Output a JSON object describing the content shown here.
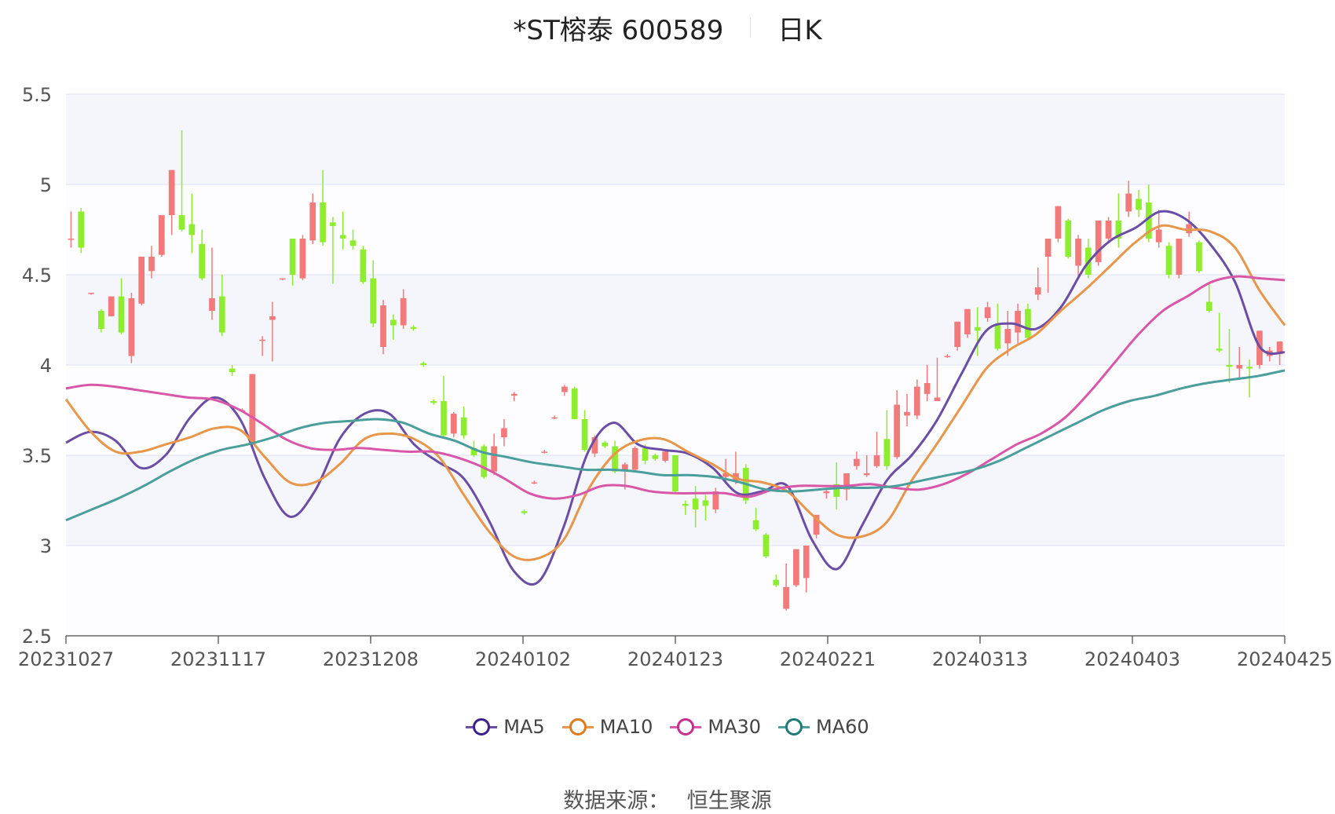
{
  "title": {
    "name": "*ST榕泰 600589",
    "period": "日K"
  },
  "source": {
    "label": "数据来源：",
    "value": "恒生聚源"
  },
  "legend": [
    {
      "name": "MA5",
      "color": "#6a4ea6",
      "ring": "#3b1f8c"
    },
    {
      "name": "MA10",
      "color": "#e8964a",
      "ring": "#e07a1c"
    },
    {
      "name": "MA30",
      "color": "#d957a8",
      "ring": "#c62f8e"
    },
    {
      "name": "MA60",
      "color": "#4a9e9b",
      "ring": "#217a78"
    }
  ],
  "chart_data": {
    "type": "candlestick",
    "ylim": [
      2.5,
      5.5
    ],
    "yticks": [
      "2.5",
      "3",
      "3.5",
      "4",
      "4.5",
      "5",
      "5.5"
    ],
    "xtick_labels": [
      "20231027",
      "20231117",
      "20231208",
      "20240102",
      "20240123",
      "20240221",
      "20240313",
      "20240403",
      "20240425"
    ],
    "up_color": "#f27a7a",
    "down_color": "#8ded2e",
    "candles": [
      [
        4.7,
        4.7,
        4.85,
        4.65
      ],
      [
        4.85,
        4.65,
        4.87,
        4.62
      ],
      [
        4.4,
        4.4,
        4.4,
        4.39
      ],
      [
        4.3,
        4.2,
        4.31,
        4.18
      ],
      [
        4.27,
        4.38,
        4.38,
        4.27
      ],
      [
        4.38,
        4.18,
        4.48,
        4.17
      ],
      [
        4.05,
        4.37,
        4.4,
        4.01
      ],
      [
        4.34,
        4.6,
        4.6,
        4.33
      ],
      [
        4.52,
        4.6,
        4.66,
        4.48
      ],
      [
        4.61,
        4.83,
        4.83,
        4.6
      ],
      [
        4.83,
        5.08,
        5.08,
        4.72
      ],
      [
        4.83,
        4.75,
        5.3,
        4.74
      ],
      [
        4.78,
        4.72,
        4.95,
        4.62
      ],
      [
        4.67,
        4.48,
        4.75,
        4.47
      ],
      [
        4.3,
        4.37,
        4.65,
        4.25
      ],
      [
        4.38,
        4.18,
        4.5,
        4.16
      ],
      [
        3.98,
        3.96,
        4.0,
        3.94
      ],
      [
        3.75,
        3.75,
        3.76,
        3.74
      ],
      [
        3.56,
        3.95,
        3.95,
        3.55
      ],
      [
        4.14,
        4.14,
        4.16,
        4.05
      ],
      [
        4.25,
        4.27,
        4.35,
        4.02
      ],
      [
        4.48,
        4.48,
        4.48,
        4.47
      ],
      [
        4.7,
        4.5,
        4.7,
        4.44
      ],
      [
        4.48,
        4.7,
        4.72,
        4.47
      ],
      [
        4.69,
        4.9,
        4.95,
        4.67
      ],
      [
        4.9,
        4.68,
        5.08,
        4.66
      ],
      [
        4.79,
        4.77,
        4.82,
        4.45
      ],
      [
        4.72,
        4.7,
        4.85,
        4.64
      ],
      [
        4.69,
        4.66,
        4.75,
        4.64
      ],
      [
        4.64,
        4.46,
        4.66,
        4.45
      ],
      [
        4.48,
        4.23,
        4.58,
        4.21
      ],
      [
        4.1,
        4.33,
        4.36,
        4.06
      ],
      [
        4.25,
        4.22,
        4.28,
        4.14
      ],
      [
        4.22,
        4.37,
        4.42,
        4.2
      ],
      [
        4.21,
        4.2,
        4.22,
        4.19
      ],
      [
        4.01,
        4.0,
        4.02,
        3.99
      ],
      [
        3.8,
        3.79,
        3.81,
        3.78
      ],
      [
        3.8,
        3.61,
        3.94,
        3.6
      ],
      [
        3.62,
        3.73,
        3.74,
        3.6
      ],
      [
        3.71,
        3.61,
        3.77,
        3.59
      ],
      [
        3.54,
        3.5,
        3.58,
        3.49
      ],
      [
        3.55,
        3.38,
        3.56,
        3.37
      ],
      [
        3.41,
        3.55,
        3.62,
        3.39
      ],
      [
        3.6,
        3.65,
        3.7,
        3.55
      ],
      [
        3.83,
        3.84,
        3.85,
        3.8
      ],
      [
        3.19,
        3.18,
        3.2,
        3.17
      ],
      [
        3.35,
        3.35,
        3.36,
        3.34
      ],
      [
        3.52,
        3.52,
        3.53,
        3.51
      ],
      [
        3.71,
        3.71,
        3.72,
        3.7
      ],
      [
        3.85,
        3.88,
        3.89,
        3.83
      ],
      [
        3.87,
        3.7,
        3.88,
        3.7
      ],
      [
        3.7,
        3.53,
        3.75,
        3.52
      ],
      [
        3.51,
        3.6,
        3.61,
        3.49
      ],
      [
        3.57,
        3.55,
        3.58,
        3.54
      ],
      [
        3.55,
        3.41,
        3.58,
        3.4
      ],
      [
        3.42,
        3.45,
        3.46,
        3.31
      ],
      [
        3.42,
        3.54,
        3.55,
        3.41
      ],
      [
        3.54,
        3.47,
        3.56,
        3.45
      ],
      [
        3.5,
        3.48,
        3.51,
        3.47
      ],
      [
        3.47,
        3.52,
        3.53,
        3.46
      ],
      [
        3.5,
        3.3,
        3.5,
        3.29
      ],
      [
        3.23,
        3.22,
        3.25,
        3.17
      ],
      [
        3.26,
        3.2,
        3.33,
        3.1
      ],
      [
        3.25,
        3.22,
        3.28,
        3.14
      ],
      [
        3.2,
        3.3,
        3.32,
        3.18
      ],
      [
        3.38,
        3.4,
        3.48,
        3.35
      ],
      [
        3.36,
        3.4,
        3.52,
        3.34
      ],
      [
        3.43,
        3.25,
        3.45,
        3.23
      ],
      [
        3.14,
        3.09,
        3.21,
        3.08
      ],
      [
        3.06,
        2.94,
        3.07,
        2.93
      ],
      [
        2.81,
        2.78,
        2.84,
        2.77
      ],
      [
        2.65,
        2.77,
        2.9,
        2.64
      ],
      [
        2.78,
        2.98,
        2.98,
        2.77
      ],
      [
        2.82,
        3.0,
        3.0,
        2.74
      ],
      [
        3.06,
        3.17,
        3.17,
        3.04
      ],
      [
        3.29,
        3.3,
        3.32,
        3.26
      ],
      [
        3.34,
        3.27,
        3.46,
        3.2
      ],
      [
        3.31,
        3.4,
        3.4,
        3.25
      ],
      [
        3.44,
        3.48,
        3.52,
        3.42
      ],
      [
        3.39,
        3.4,
        3.5,
        3.38
      ],
      [
        3.44,
        3.5,
        3.63,
        3.43
      ],
      [
        3.59,
        3.44,
        3.75,
        3.42
      ],
      [
        3.49,
        3.78,
        3.86,
        3.48
      ],
      [
        3.72,
        3.74,
        3.84,
        3.66
      ],
      [
        3.72,
        3.88,
        3.92,
        3.7
      ],
      [
        3.84,
        3.9,
        4.0,
        3.8
      ],
      [
        3.8,
        3.82,
        4.04,
        3.8
      ],
      [
        4.05,
        4.05,
        4.06,
        4.04
      ],
      [
        4.1,
        4.24,
        4.24,
        4.08
      ],
      [
        4.17,
        4.31,
        4.31,
        4.15
      ],
      [
        4.21,
        4.19,
        4.32,
        4.05
      ],
      [
        4.26,
        4.32,
        4.35,
        4.24
      ],
      [
        4.22,
        4.09,
        4.34,
        4.08
      ],
      [
        4.12,
        4.2,
        4.3,
        4.05
      ],
      [
        4.18,
        4.3,
        4.34,
        4.12
      ],
      [
        4.31,
        4.15,
        4.34,
        4.14
      ],
      [
        4.39,
        4.43,
        4.54,
        4.36
      ],
      [
        4.6,
        4.7,
        4.7,
        4.4
      ],
      [
        4.7,
        4.88,
        4.88,
        4.68
      ],
      [
        4.8,
        4.6,
        4.81,
        4.59
      ],
      [
        4.55,
        4.7,
        4.72,
        4.48
      ],
      [
        4.65,
        4.5,
        4.7,
        4.48
      ],
      [
        4.57,
        4.8,
        4.8,
        4.55
      ],
      [
        4.7,
        4.8,
        4.82,
        4.68
      ],
      [
        4.8,
        4.7,
        4.95,
        4.65
      ],
      [
        4.85,
        4.95,
        5.02,
        4.82
      ],
      [
        4.92,
        4.86,
        4.97,
        4.82
      ],
      [
        4.9,
        4.7,
        5.0,
        4.68
      ],
      [
        4.68,
        4.75,
        4.86,
        4.65
      ],
      [
        4.66,
        4.5,
        4.68,
        4.48
      ],
      [
        4.5,
        4.7,
        4.7,
        4.48
      ],
      [
        4.73,
        4.78,
        4.85,
        4.71
      ],
      [
        4.68,
        4.52,
        4.69,
        4.51
      ],
      [
        4.35,
        4.3,
        4.45,
        4.29
      ],
      [
        4.09,
        4.08,
        4.29,
        4.07
      ],
      [
        4.0,
        3.99,
        4.2,
        3.9
      ],
      [
        3.98,
        4.0,
        4.1,
        3.92
      ],
      [
        3.99,
        3.98,
        4.03,
        3.82
      ],
      [
        4.0,
        4.19,
        4.19,
        3.98
      ],
      [
        4.05,
        4.08,
        4.1,
        4.02
      ],
      [
        4.06,
        4.13,
        4.13,
        4.0
      ]
    ],
    "series": [
      {
        "name": "MA5",
        "values": [
          3.57,
          3.63,
          3.58,
          3.43,
          3.5,
          3.71,
          3.82,
          3.7,
          3.37,
          3.16,
          3.3,
          3.59,
          3.73,
          3.73,
          3.56,
          3.46,
          3.37,
          3.14,
          2.86,
          2.8,
          3.1,
          3.52,
          3.68,
          3.56,
          3.53,
          3.51,
          3.43,
          3.29,
          3.3,
          3.33,
          3.03,
          2.87,
          3.11,
          3.36,
          3.5,
          3.69,
          3.95,
          4.19,
          4.23,
          4.2,
          4.32,
          4.55,
          4.69,
          4.76,
          4.85,
          4.81,
          4.67,
          4.46,
          4.1,
          4.07
        ]
      },
      {
        "name": "MA10",
        "values": [
          3.81,
          3.63,
          3.52,
          3.52,
          3.56,
          3.6,
          3.65,
          3.64,
          3.49,
          3.35,
          3.35,
          3.45,
          3.59,
          3.62,
          3.59,
          3.49,
          3.28,
          3.08,
          2.94,
          2.93,
          3.03,
          3.31,
          3.5,
          3.58,
          3.59,
          3.52,
          3.45,
          3.37,
          3.35,
          3.3,
          3.17,
          3.06,
          3.05,
          3.13,
          3.36,
          3.56,
          3.77,
          3.98,
          4.09,
          4.17,
          4.3,
          4.42,
          4.55,
          4.68,
          4.77,
          4.75,
          4.74,
          4.65,
          4.41,
          4.22
        ]
      },
      {
        "name": "MA30",
        "values": [
          3.87,
          3.89,
          3.88,
          3.86,
          3.84,
          3.82,
          3.81,
          3.76,
          3.68,
          3.59,
          3.54,
          3.53,
          3.54,
          3.53,
          3.52,
          3.52,
          3.49,
          3.44,
          3.37,
          3.29,
          3.26,
          3.28,
          3.33,
          3.33,
          3.3,
          3.29,
          3.29,
          3.29,
          3.27,
          3.31,
          3.33,
          3.33,
          3.33,
          3.34,
          3.32,
          3.31,
          3.34,
          3.4,
          3.48,
          3.56,
          3.62,
          3.71,
          3.85,
          4.01,
          4.17,
          4.3,
          4.38,
          4.46,
          4.49,
          4.48,
          4.47
        ]
      },
      {
        "name": "MA60",
        "values": [
          3.14,
          3.2,
          3.26,
          3.33,
          3.41,
          3.48,
          3.53,
          3.56,
          3.6,
          3.65,
          3.68,
          3.69,
          3.7,
          3.68,
          3.62,
          3.58,
          3.52,
          3.49,
          3.46,
          3.44,
          3.42,
          3.42,
          3.41,
          3.39,
          3.39,
          3.38,
          3.35,
          3.31,
          3.3,
          3.31,
          3.32,
          3.32,
          3.33,
          3.36,
          3.39,
          3.42,
          3.47,
          3.54,
          3.61,
          3.68,
          3.75,
          3.8,
          3.83,
          3.87,
          3.9,
          3.92,
          3.94,
          3.97
        ]
      }
    ]
  }
}
